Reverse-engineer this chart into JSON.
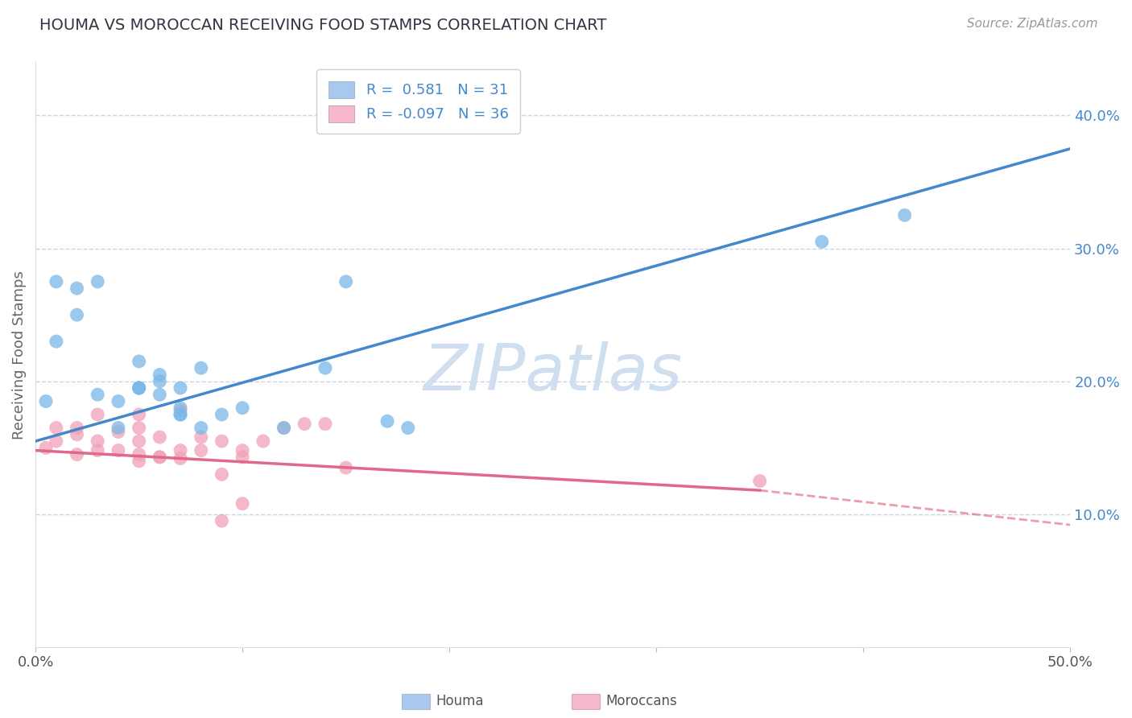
{
  "title": "HOUMA VS MOROCCAN RECEIVING FOOD STAMPS CORRELATION CHART",
  "source": "Source: ZipAtlas.com",
  "ylabel": "Receiving Food Stamps",
  "xlim": [
    0.0,
    0.5
  ],
  "ylim": [
    0.0,
    0.44
  ],
  "xticks": [
    0.0,
    0.1,
    0.2,
    0.3,
    0.4,
    0.5
  ],
  "xtick_labels": [
    "0.0%",
    "",
    "",
    "",
    "",
    "50.0%"
  ],
  "ytick_labels_right": [
    "10.0%",
    "20.0%",
    "30.0%",
    "40.0%"
  ],
  "ytick_vals_right": [
    0.1,
    0.2,
    0.3,
    0.4
  ],
  "blue_scatter_color": "#7ab8e8",
  "pink_scatter_color": "#f0a0b8",
  "blue_line_color": "#4488cc",
  "pink_line_color": "#e06888",
  "grid_color": "#c8d4e8",
  "title_color": "#333344",
  "source_color": "#999999",
  "watermark": "ZIPatlas",
  "watermark_color": "#d0dff0",
  "legend_blue_R": "0.581",
  "legend_blue_N": "31",
  "legend_pink_R": "-0.097",
  "legend_pink_N": "36",
  "blue_legend_patch": "#a8c8f0",
  "pink_legend_patch": "#f8b8cc",
  "blue_line_start_y": 0.155,
  "blue_line_end_y": 0.375,
  "pink_line_start_y": 0.148,
  "pink_line_end_x_solid": 0.35,
  "pink_line_solid_end_y": 0.118,
  "pink_line_end_x_dash": 0.5,
  "pink_line_dash_end_y": 0.092,
  "houma_x": [
    0.005,
    0.01,
    0.02,
    0.01,
    0.03,
    0.02,
    0.04,
    0.05,
    0.04,
    0.03,
    0.05,
    0.05,
    0.06,
    0.07,
    0.06,
    0.05,
    0.06,
    0.07,
    0.07,
    0.08,
    0.07,
    0.08,
    0.09,
    0.1,
    0.12,
    0.14,
    0.15,
    0.17,
    0.18,
    0.38,
    0.42
  ],
  "houma_y": [
    0.185,
    0.275,
    0.27,
    0.23,
    0.19,
    0.25,
    0.165,
    0.195,
    0.185,
    0.275,
    0.195,
    0.195,
    0.2,
    0.175,
    0.19,
    0.215,
    0.205,
    0.195,
    0.175,
    0.21,
    0.18,
    0.165,
    0.175,
    0.18,
    0.165,
    0.21,
    0.275,
    0.17,
    0.165,
    0.305,
    0.325
  ],
  "moroccan_x": [
    0.005,
    0.01,
    0.01,
    0.02,
    0.02,
    0.02,
    0.03,
    0.03,
    0.03,
    0.04,
    0.04,
    0.05,
    0.05,
    0.05,
    0.05,
    0.05,
    0.06,
    0.06,
    0.06,
    0.07,
    0.07,
    0.07,
    0.08,
    0.08,
    0.09,
    0.09,
    0.1,
    0.1,
    0.11,
    0.12,
    0.13,
    0.14,
    0.15,
    0.09,
    0.35,
    0.1
  ],
  "moroccan_y": [
    0.15,
    0.155,
    0.165,
    0.145,
    0.16,
    0.165,
    0.148,
    0.155,
    0.175,
    0.148,
    0.162,
    0.14,
    0.145,
    0.155,
    0.165,
    0.175,
    0.143,
    0.143,
    0.158,
    0.142,
    0.148,
    0.178,
    0.148,
    0.158,
    0.155,
    0.13,
    0.143,
    0.148,
    0.155,
    0.165,
    0.168,
    0.168,
    0.135,
    0.095,
    0.125,
    0.108
  ]
}
